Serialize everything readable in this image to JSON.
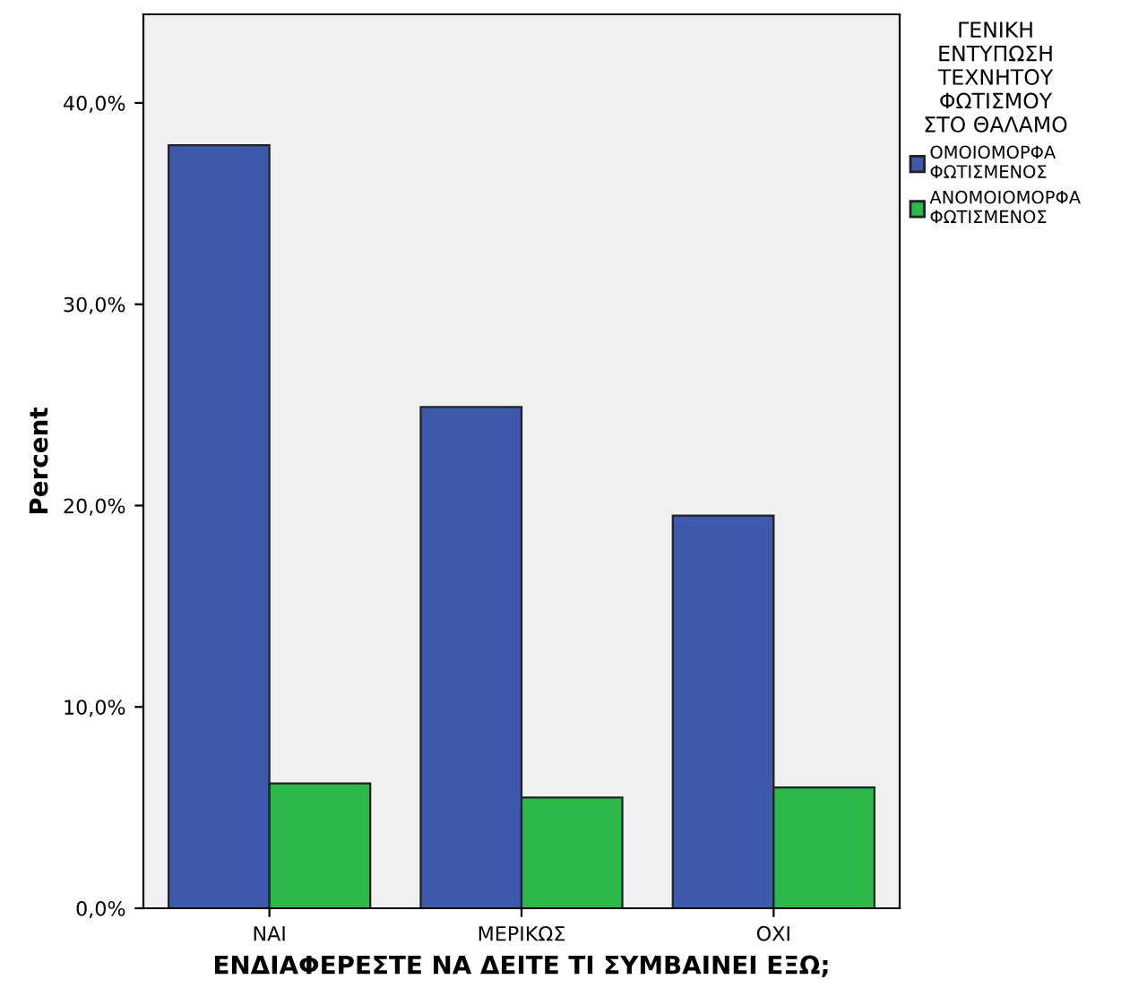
{
  "chart_data": {
    "type": "bar",
    "xlabel": "ΕΝΔΙΑΦΕΡΕΣΤΕ ΝΑ ΔΕΙΤΕ ΤΙ ΣΥΜΒΑΙΝΕΙ ΕΞΩ;",
    "ylabel": "Percent",
    "legend_title": "ΓΕΝΙΚΗ\nΕΝΤΥΠΩΣΗ\nΤΕΧΝΗΤΟΥ\nΦΩΤΙΣΜΟΥ\nΣΤΟ ΘΑΛΑΜΟ",
    "categories": [
      "ΝΑΙ",
      "ΜΕΡΙΚΩΣ",
      "ΟΧΙ"
    ],
    "series": [
      {
        "name": "ΟΜΟΙΟΜΟΡΦΑ\nΦΩΤΙΣΜΕΝΟΣ",
        "color": "#3e58ab",
        "values": [
          37.9,
          24.9,
          19.5
        ]
      },
      {
        "name": "ΑΝΟΜΟΙΟΜΟΡΦΑ\nΦΩΤΙΣΜΕΝΟΣ",
        "color": "#2db84a",
        "values": [
          6.2,
          5.5,
          6.0
        ]
      }
    ],
    "ylim": [
      0,
      44.4
    ],
    "yticks": [
      {
        "value": 0,
        "label": "0,0%"
      },
      {
        "value": 10,
        "label": "10,0%"
      },
      {
        "value": 20,
        "label": "20,0%"
      },
      {
        "value": 30,
        "label": "30,0%"
      },
      {
        "value": 40,
        "label": "40,0%"
      }
    ],
    "grid": false,
    "legend": "right"
  }
}
